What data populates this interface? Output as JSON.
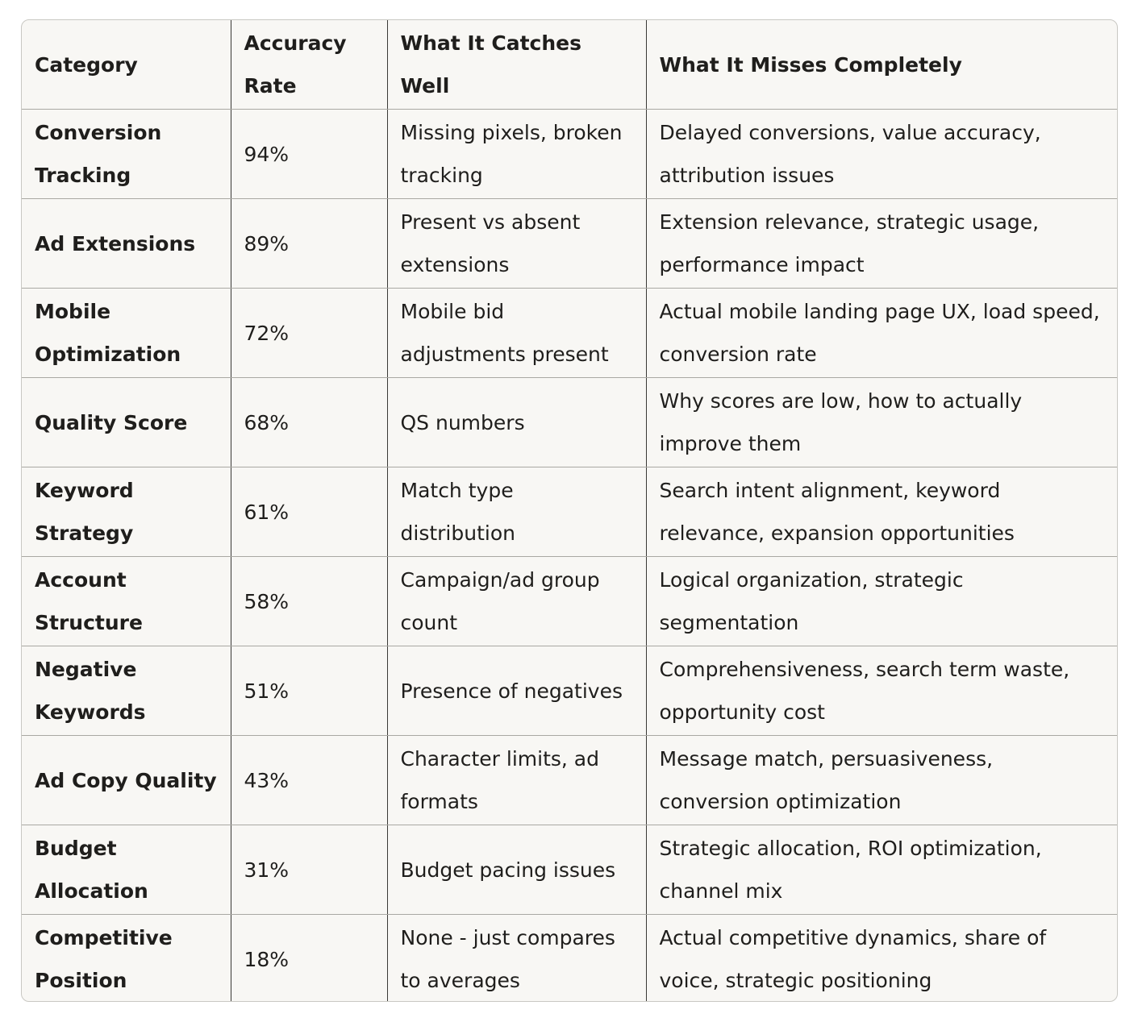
{
  "table": {
    "headers": [
      "Category",
      "Accuracy Rate",
      "What It Catches Well",
      "What It Misses Completely"
    ],
    "rows": [
      [
        "Conversion Tracking",
        "94%",
        "Missing pixels, broken tracking",
        "Delayed conversions, value accuracy, attribution issues"
      ],
      [
        "Ad Extensions",
        "89%",
        "Present vs absent extensions",
        "Extension relevance, strategic usage, performance impact"
      ],
      [
        "Mobile Optimization",
        "72%",
        "Mobile bid adjustments present",
        "Actual mobile landing page UX, load speed, conversion rate"
      ],
      [
        "Quality Score",
        "68%",
        "QS numbers",
        "Why scores are low, how to actually improve them"
      ],
      [
        "Keyword Strategy",
        "61%",
        "Match type distribution",
        "Search intent alignment, keyword relevance, expansion opportunities"
      ],
      [
        "Account Structure",
        "58%",
        "Campaign/ad group count",
        "Logical organization, strategic segmentation"
      ],
      [
        "Negative Keywords",
        "51%",
        "Presence of negatives",
        "Comprehensiveness, search term waste, opportunity cost"
      ],
      [
        "Ad Copy Quality",
        "43%",
        "Character limits, ad formats",
        "Message match, persuasiveness, conversion optimization"
      ],
      [
        "Budget Allocation",
        "31%",
        "Budget pacing issues",
        "Strategic allocation, ROI optimization, channel mix"
      ],
      [
        "Competitive Position",
        "18%",
        "None - just compares to averages",
        "Actual competitive dynamics, share of voice, strategic positioning"
      ]
    ]
  }
}
